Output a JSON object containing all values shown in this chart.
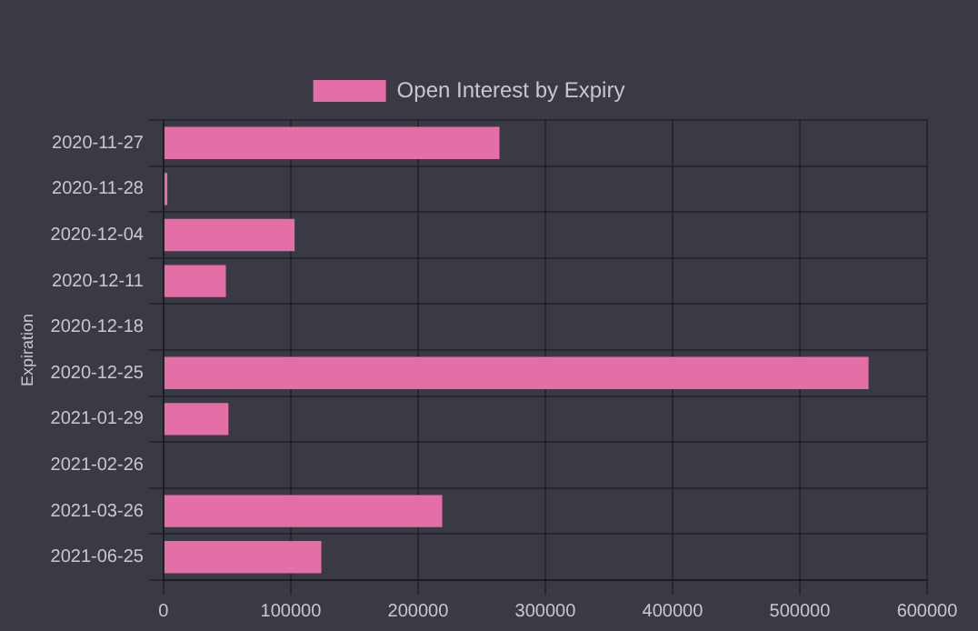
{
  "chart_data": {
    "type": "bar",
    "orientation": "horizontal",
    "ylabel": "Expiration",
    "categories": [
      "2020-11-27",
      "2020-11-28",
      "2020-12-04",
      "2020-12-11",
      "2020-12-18",
      "2020-12-25",
      "2021-01-29",
      "2021-02-26",
      "2021-03-26",
      "2021-06-25"
    ],
    "series": [
      {
        "name": "Open Interest by Expiry",
        "color": "#e36fa6",
        "values": [
          264000,
          3000,
          103000,
          49000,
          0,
          554000,
          51000,
          0,
          219000,
          124000
        ]
      }
    ],
    "xlim": [
      0,
      600000
    ],
    "xticks": [
      0,
      100000,
      200000,
      300000,
      400000,
      500000,
      600000
    ],
    "grid": true,
    "legend": "top"
  }
}
